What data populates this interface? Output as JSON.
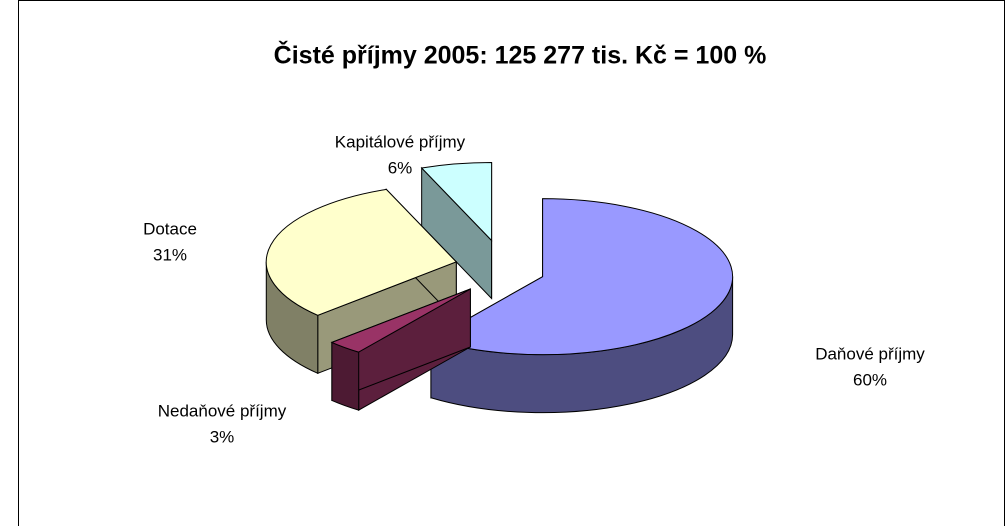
{
  "chart_data": {
    "type": "pie",
    "title": "Čisté příjmy 2005: 125 277 tis. Kč = 100 %",
    "categories": [
      "Daňové příjmy",
      "Nedaňové příjmy",
      "Dotace",
      "Kapitálové příjmy"
    ],
    "values": [
      60,
      3,
      31,
      6
    ],
    "value_labels": [
      "60%",
      "3%",
      "31%",
      "6%"
    ],
    "colors": [
      "#9999ff",
      "#993366",
      "#ffffcc",
      "#ccffff"
    ]
  }
}
